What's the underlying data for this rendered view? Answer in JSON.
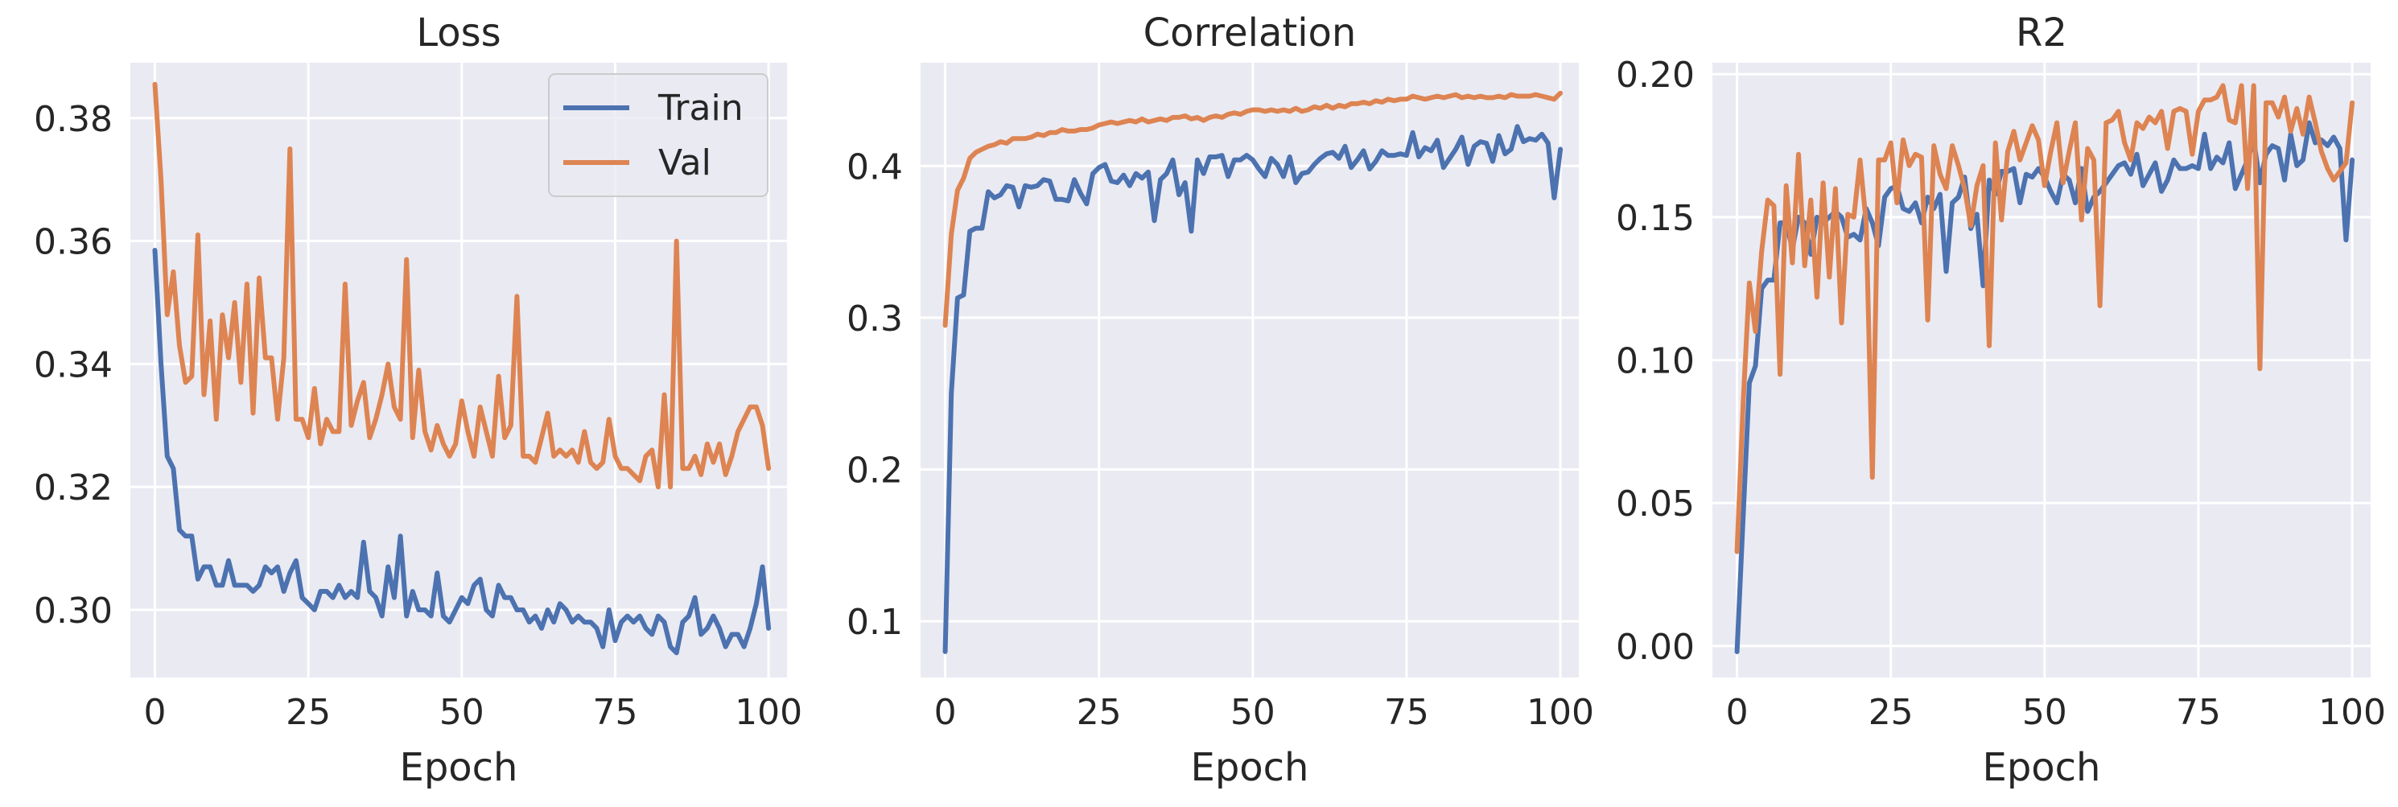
{
  "colors": {
    "train": "#4c72b0",
    "val": "#dd8452",
    "panel_bg": "#eaeaf2",
    "grid": "#ffffff"
  },
  "legend": {
    "placement": "top-right",
    "entries": [
      "Train",
      "Val"
    ]
  },
  "chart_data": [
    {
      "type": "line",
      "title": "Loss",
      "xlabel": "Epoch",
      "ylabel": "",
      "xlim": [
        -4,
        103
      ],
      "ylim": [
        0.289,
        0.389
      ],
      "xticks": [
        0,
        25,
        50,
        75,
        100
      ],
      "yticks": [
        0.3,
        0.32,
        0.34,
        0.36,
        0.38
      ],
      "ytick_labels": [
        "0.30",
        "0.32",
        "0.34",
        "0.36",
        "0.38"
      ],
      "grid": true,
      "legend": true,
      "series": [
        {
          "name": "Train",
          "color": "#4c72b0",
          "values": [
            0.3585,
            0.34,
            0.325,
            0.323,
            0.313,
            0.312,
            0.312,
            0.305,
            0.307,
            0.307,
            0.304,
            0.304,
            0.308,
            0.304,
            0.304,
            0.304,
            0.303,
            0.304,
            0.307,
            0.306,
            0.307,
            0.303,
            0.306,
            0.308,
            0.302,
            0.301,
            0.3,
            0.303,
            0.303,
            0.302,
            0.304,
            0.302,
            0.303,
            0.302,
            0.311,
            0.303,
            0.302,
            0.299,
            0.307,
            0.302,
            0.312,
            0.299,
            0.303,
            0.3,
            0.3,
            0.299,
            0.306,
            0.299,
            0.298,
            0.3,
            0.302,
            0.301,
            0.304,
            0.305,
            0.3,
            0.299,
            0.304,
            0.302,
            0.302,
            0.3,
            0.3,
            0.298,
            0.299,
            0.297,
            0.3,
            0.298,
            0.301,
            0.3,
            0.298,
            0.299,
            0.298,
            0.298,
            0.297,
            0.294,
            0.3,
            0.295,
            0.298,
            0.299,
            0.298,
            0.299,
            0.297,
            0.296,
            0.299,
            0.298,
            0.294,
            0.293,
            0.298,
            0.299,
            0.302,
            0.296,
            0.297,
            0.299,
            0.297,
            0.294,
            0.296,
            0.296,
            0.294,
            0.297,
            0.301,
            0.307,
            0.297
          ]
        },
        {
          "name": "Val",
          "color": "#dd8452",
          "values": [
            0.3855,
            0.37,
            0.348,
            0.355,
            0.343,
            0.337,
            0.338,
            0.361,
            0.335,
            0.347,
            0.331,
            0.348,
            0.341,
            0.35,
            0.337,
            0.353,
            0.332,
            0.354,
            0.341,
            0.341,
            0.331,
            0.341,
            0.375,
            0.331,
            0.331,
            0.328,
            0.336,
            0.327,
            0.331,
            0.329,
            0.329,
            0.353,
            0.33,
            0.334,
            0.337,
            0.328,
            0.331,
            0.335,
            0.34,
            0.333,
            0.331,
            0.357,
            0.328,
            0.339,
            0.329,
            0.326,
            0.33,
            0.327,
            0.325,
            0.327,
            0.334,
            0.329,
            0.325,
            0.333,
            0.329,
            0.325,
            0.338,
            0.328,
            0.33,
            0.351,
            0.325,
            0.325,
            0.324,
            0.328,
            0.332,
            0.325,
            0.326,
            0.325,
            0.326,
            0.324,
            0.329,
            0.324,
            0.323,
            0.324,
            0.331,
            0.325,
            0.323,
            0.323,
            0.322,
            0.321,
            0.325,
            0.326,
            0.32,
            0.335,
            0.32,
            0.36,
            0.323,
            0.323,
            0.325,
            0.322,
            0.327,
            0.324,
            0.327,
            0.322,
            0.325,
            0.329,
            0.331,
            0.333,
            0.333,
            0.33,
            0.323
          ]
        }
      ]
    },
    {
      "type": "line",
      "title": "Correlation",
      "xlabel": "Epoch",
      "ylabel": "",
      "xlim": [
        -4,
        103
      ],
      "ylim": [
        0.063,
        0.468
      ],
      "xticks": [
        0,
        25,
        50,
        75,
        100
      ],
      "yticks": [
        0.1,
        0.2,
        0.3,
        0.4
      ],
      "ytick_labels": [
        "0.1",
        "0.2",
        "0.3",
        "0.4"
      ],
      "grid": true,
      "legend": false,
      "series": [
        {
          "name": "Train",
          "color": "#4c72b0",
          "values": [
            0.08,
            0.25,
            0.313,
            0.315,
            0.357,
            0.359,
            0.359,
            0.383,
            0.379,
            0.381,
            0.387,
            0.386,
            0.373,
            0.387,
            0.386,
            0.387,
            0.391,
            0.39,
            0.378,
            0.378,
            0.377,
            0.391,
            0.382,
            0.375,
            0.395,
            0.399,
            0.401,
            0.39,
            0.389,
            0.394,
            0.387,
            0.395,
            0.392,
            0.396,
            0.364,
            0.391,
            0.395,
            0.404,
            0.381,
            0.389,
            0.357,
            0.404,
            0.395,
            0.406,
            0.406,
            0.407,
            0.393,
            0.404,
            0.404,
            0.407,
            0.404,
            0.398,
            0.393,
            0.405,
            0.401,
            0.393,
            0.406,
            0.389,
            0.395,
            0.396,
            0.401,
            0.405,
            0.408,
            0.409,
            0.405,
            0.413,
            0.399,
            0.404,
            0.41,
            0.398,
            0.403,
            0.41,
            0.407,
            0.407,
            0.408,
            0.407,
            0.422,
            0.406,
            0.412,
            0.41,
            0.417,
            0.399,
            0.405,
            0.411,
            0.419,
            0.401,
            0.413,
            0.416,
            0.415,
            0.403,
            0.42,
            0.408,
            0.411,
            0.426,
            0.416,
            0.418,
            0.417,
            0.421,
            0.415,
            0.379,
            0.411
          ]
        },
        {
          "name": "Val",
          "color": "#dd8452",
          "values": [
            0.295,
            0.355,
            0.384,
            0.392,
            0.405,
            0.409,
            0.411,
            0.413,
            0.414,
            0.416,
            0.415,
            0.418,
            0.418,
            0.418,
            0.419,
            0.421,
            0.42,
            0.422,
            0.422,
            0.424,
            0.423,
            0.423,
            0.424,
            0.424,
            0.425,
            0.427,
            0.428,
            0.429,
            0.428,
            0.429,
            0.43,
            0.429,
            0.431,
            0.429,
            0.43,
            0.431,
            0.43,
            0.432,
            0.432,
            0.433,
            0.431,
            0.432,
            0.43,
            0.432,
            0.433,
            0.432,
            0.434,
            0.435,
            0.434,
            0.436,
            0.437,
            0.437,
            0.436,
            0.437,
            0.436,
            0.437,
            0.436,
            0.438,
            0.436,
            0.437,
            0.439,
            0.438,
            0.44,
            0.438,
            0.44,
            0.439,
            0.441,
            0.441,
            0.442,
            0.441,
            0.443,
            0.442,
            0.444,
            0.443,
            0.444,
            0.444,
            0.446,
            0.445,
            0.444,
            0.445,
            0.446,
            0.445,
            0.446,
            0.447,
            0.445,
            0.446,
            0.445,
            0.446,
            0.445,
            0.445,
            0.446,
            0.445,
            0.447,
            0.446,
            0.446,
            0.446,
            0.447,
            0.446,
            0.445,
            0.444,
            0.448
          ]
        }
      ]
    },
    {
      "type": "line",
      "title": "R2",
      "xlabel": "Epoch",
      "ylabel": "",
      "xlim": [
        -4,
        103
      ],
      "ylim": [
        -0.011,
        0.204
      ],
      "xticks": [
        0,
        25,
        50,
        75,
        100
      ],
      "yticks": [
        0.0,
        0.05,
        0.1,
        0.15,
        0.2
      ],
      "ytick_labels": [
        "0.00",
        "0.05",
        "0.10",
        "0.15",
        "0.20"
      ],
      "grid": true,
      "legend": false,
      "series": [
        {
          "name": "Train",
          "color": "#4c72b0",
          "values": [
            -0.002,
            0.045,
            0.092,
            0.098,
            0.125,
            0.128,
            0.128,
            0.148,
            0.148,
            0.139,
            0.15,
            0.148,
            0.137,
            0.15,
            0.148,
            0.15,
            0.152,
            0.15,
            0.143,
            0.144,
            0.142,
            0.153,
            0.148,
            0.14,
            0.157,
            0.16,
            0.161,
            0.153,
            0.152,
            0.155,
            0.148,
            0.157,
            0.153,
            0.158,
            0.131,
            0.155,
            0.157,
            0.164,
            0.146,
            0.151,
            0.126,
            0.163,
            0.158,
            0.166,
            0.166,
            0.167,
            0.155,
            0.165,
            0.164,
            0.167,
            0.164,
            0.159,
            0.155,
            0.165,
            0.163,
            0.155,
            0.167,
            0.152,
            0.157,
            0.159,
            0.162,
            0.165,
            0.168,
            0.169,
            0.165,
            0.172,
            0.161,
            0.165,
            0.169,
            0.159,
            0.163,
            0.17,
            0.167,
            0.167,
            0.168,
            0.167,
            0.179,
            0.167,
            0.171,
            0.169,
            0.176,
            0.16,
            0.165,
            0.17,
            0.177,
            0.162,
            0.172,
            0.175,
            0.174,
            0.163,
            0.179,
            0.168,
            0.17,
            0.183,
            0.176,
            0.177,
            0.175,
            0.178,
            0.174,
            0.142,
            0.17
          ]
        },
        {
          "name": "Val",
          "color": "#dd8452",
          "values": [
            0.033,
            0.085,
            0.127,
            0.11,
            0.138,
            0.156,
            0.154,
            0.095,
            0.161,
            0.134,
            0.172,
            0.133,
            0.156,
            0.122,
            0.162,
            0.129,
            0.16,
            0.113,
            0.151,
            0.15,
            0.17,
            0.148,
            0.059,
            0.17,
            0.17,
            0.176,
            0.155,
            0.177,
            0.168,
            0.172,
            0.171,
            0.114,
            0.175,
            0.165,
            0.16,
            0.175,
            0.168,
            0.16,
            0.147,
            0.161,
            0.168,
            0.105,
            0.176,
            0.149,
            0.173,
            0.18,
            0.17,
            0.176,
            0.182,
            0.177,
            0.161,
            0.173,
            0.183,
            0.162,
            0.173,
            0.183,
            0.149,
            0.174,
            0.17,
            0.119,
            0.183,
            0.184,
            0.187,
            0.176,
            0.17,
            0.183,
            0.181,
            0.185,
            0.183,
            0.187,
            0.174,
            0.187,
            0.188,
            0.187,
            0.172,
            0.187,
            0.191,
            0.191,
            0.192,
            0.196,
            0.184,
            0.183,
            0.196,
            0.16,
            0.196,
            0.097,
            0.19,
            0.19,
            0.185,
            0.192,
            0.18,
            0.188,
            0.179,
            0.192,
            0.183,
            0.173,
            0.167,
            0.163,
            0.166,
            0.169,
            0.19
          ]
        }
      ]
    }
  ]
}
